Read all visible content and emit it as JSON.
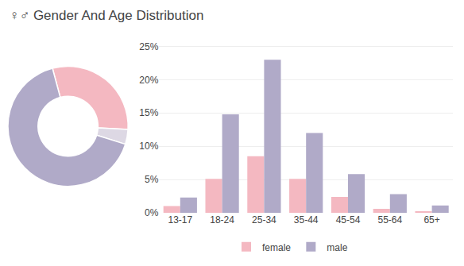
{
  "chart_data": [
    {
      "type": "donut",
      "values": [
        0.3,
        0.04,
        0.66
      ],
      "colors": [
        "#f4b8c1",
        "#ddd8e4",
        "#b0aac8"
      ]
    },
    {
      "type": "bar",
      "title": "♀♂ Gender And Age Distribution",
      "categories": [
        "13-17",
        "18-24",
        "25-34",
        "35-44",
        "45-54",
        "55-64",
        "65+"
      ],
      "series": [
        {
          "name": "female",
          "color": "#f4b8c1",
          "values": [
            1.0,
            5.1,
            8.5,
            5.1,
            2.4,
            0.6,
            0.2
          ]
        },
        {
          "name": "male",
          "color": "#b0aac8",
          "values": [
            2.3,
            14.8,
            23.0,
            12.0,
            5.8,
            2.8,
            1.1
          ]
        }
      ],
      "ylim": [
        0,
        26
      ],
      "yticks": [
        {
          "value": 0,
          "label": "0%"
        },
        {
          "value": 5,
          "label": "5%"
        },
        {
          "value": 10,
          "label": "10%"
        },
        {
          "value": 15,
          "label": "15%"
        },
        {
          "value": 20,
          "label": "20%"
        },
        {
          "value": 25,
          "label": "25%"
        }
      ],
      "grid": true,
      "legend": "bottom"
    }
  ]
}
